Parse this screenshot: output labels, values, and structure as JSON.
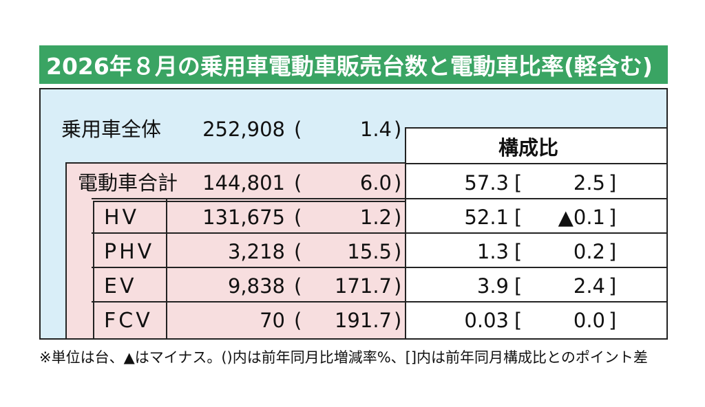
{
  "title": "2026年８月の乗用車電動車販売台数と電動車比率(軽含む)",
  "composition_header": "構成比",
  "total": {
    "label": "乗用車全体",
    "units": "252,908",
    "yoy": "1.4"
  },
  "rows": [
    {
      "label": "電動車合計",
      "units": "144,801",
      "yoy": "6.0",
      "share": "57.3",
      "share_diff": "2.5"
    },
    {
      "label": "HV",
      "units": "131,675",
      "yoy": "1.2",
      "share": "52.1",
      "share_diff": "▲0.1"
    },
    {
      "label": "PHV",
      "units": "3,218",
      "yoy": "15.5",
      "share": "1.3",
      "share_diff": "0.2"
    },
    {
      "label": "EV",
      "units": "9,838",
      "yoy": "171.7",
      "share": "3.9",
      "share_diff": "2.4"
    },
    {
      "label": "FCV",
      "units": "70",
      "yoy": "191.7",
      "share": "0.03",
      "share_diff": "0.0"
    }
  ],
  "brackets": {
    "paren_open": "(",
    "paren_close": ")",
    "square_open": "[",
    "square_close": "]"
  },
  "footnote": "※単位は台、▲はマイナス。()内は前年同月比増減率%、[]内は前年同月構成比とのポイント差"
}
